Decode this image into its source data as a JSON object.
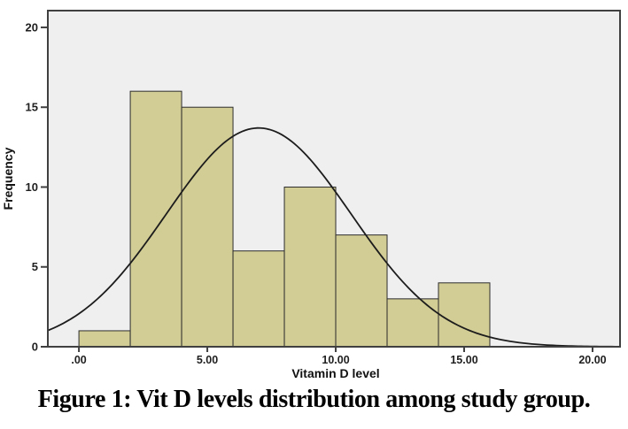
{
  "figure": {
    "caption": "Figure 1: Vit D levels distribution among study group."
  },
  "chart_data": {
    "type": "bar",
    "subtype": "histogram-with-normal-curve",
    "title": "",
    "xlabel": "Vitamin D level",
    "ylabel": "Frequency",
    "bin_start": 0,
    "bin_width": 2,
    "bin_edges": [
      0,
      2,
      4,
      6,
      8,
      10,
      12,
      14,
      16
    ],
    "values": [
      1,
      16,
      15,
      6,
      10,
      7,
      3,
      4
    ],
    "x_ticks": [
      {
        "value": 0,
        "label": ".00"
      },
      {
        "value": 5,
        "label": "5.00"
      },
      {
        "value": 10,
        "label": "10.00"
      },
      {
        "value": 15,
        "label": "15.00"
      },
      {
        "value": 20,
        "label": "20.00"
      }
    ],
    "y_ticks": [
      {
        "value": 0,
        "label": "0"
      },
      {
        "value": 5,
        "label": "5"
      },
      {
        "value": 10,
        "label": "10"
      },
      {
        "value": 15,
        "label": "15"
      },
      {
        "value": 20,
        "label": "20"
      }
    ],
    "xlim": [
      -1.21,
      21.07
    ],
    "ylim": [
      0,
      21.05
    ],
    "grid": false,
    "legend": "none",
    "normal_curve": {
      "mean": 7.0,
      "sd": 3.6,
      "peak": 13.7
    },
    "colors": {
      "bar_fill": "#d2cc95",
      "bar_border": "#2d2d2d",
      "plot_bg": "#efefef",
      "frame": "#404040",
      "curve": "#1c1c1c",
      "tick_text": "#1f1f1f",
      "page_bg": "#ffffff"
    }
  }
}
